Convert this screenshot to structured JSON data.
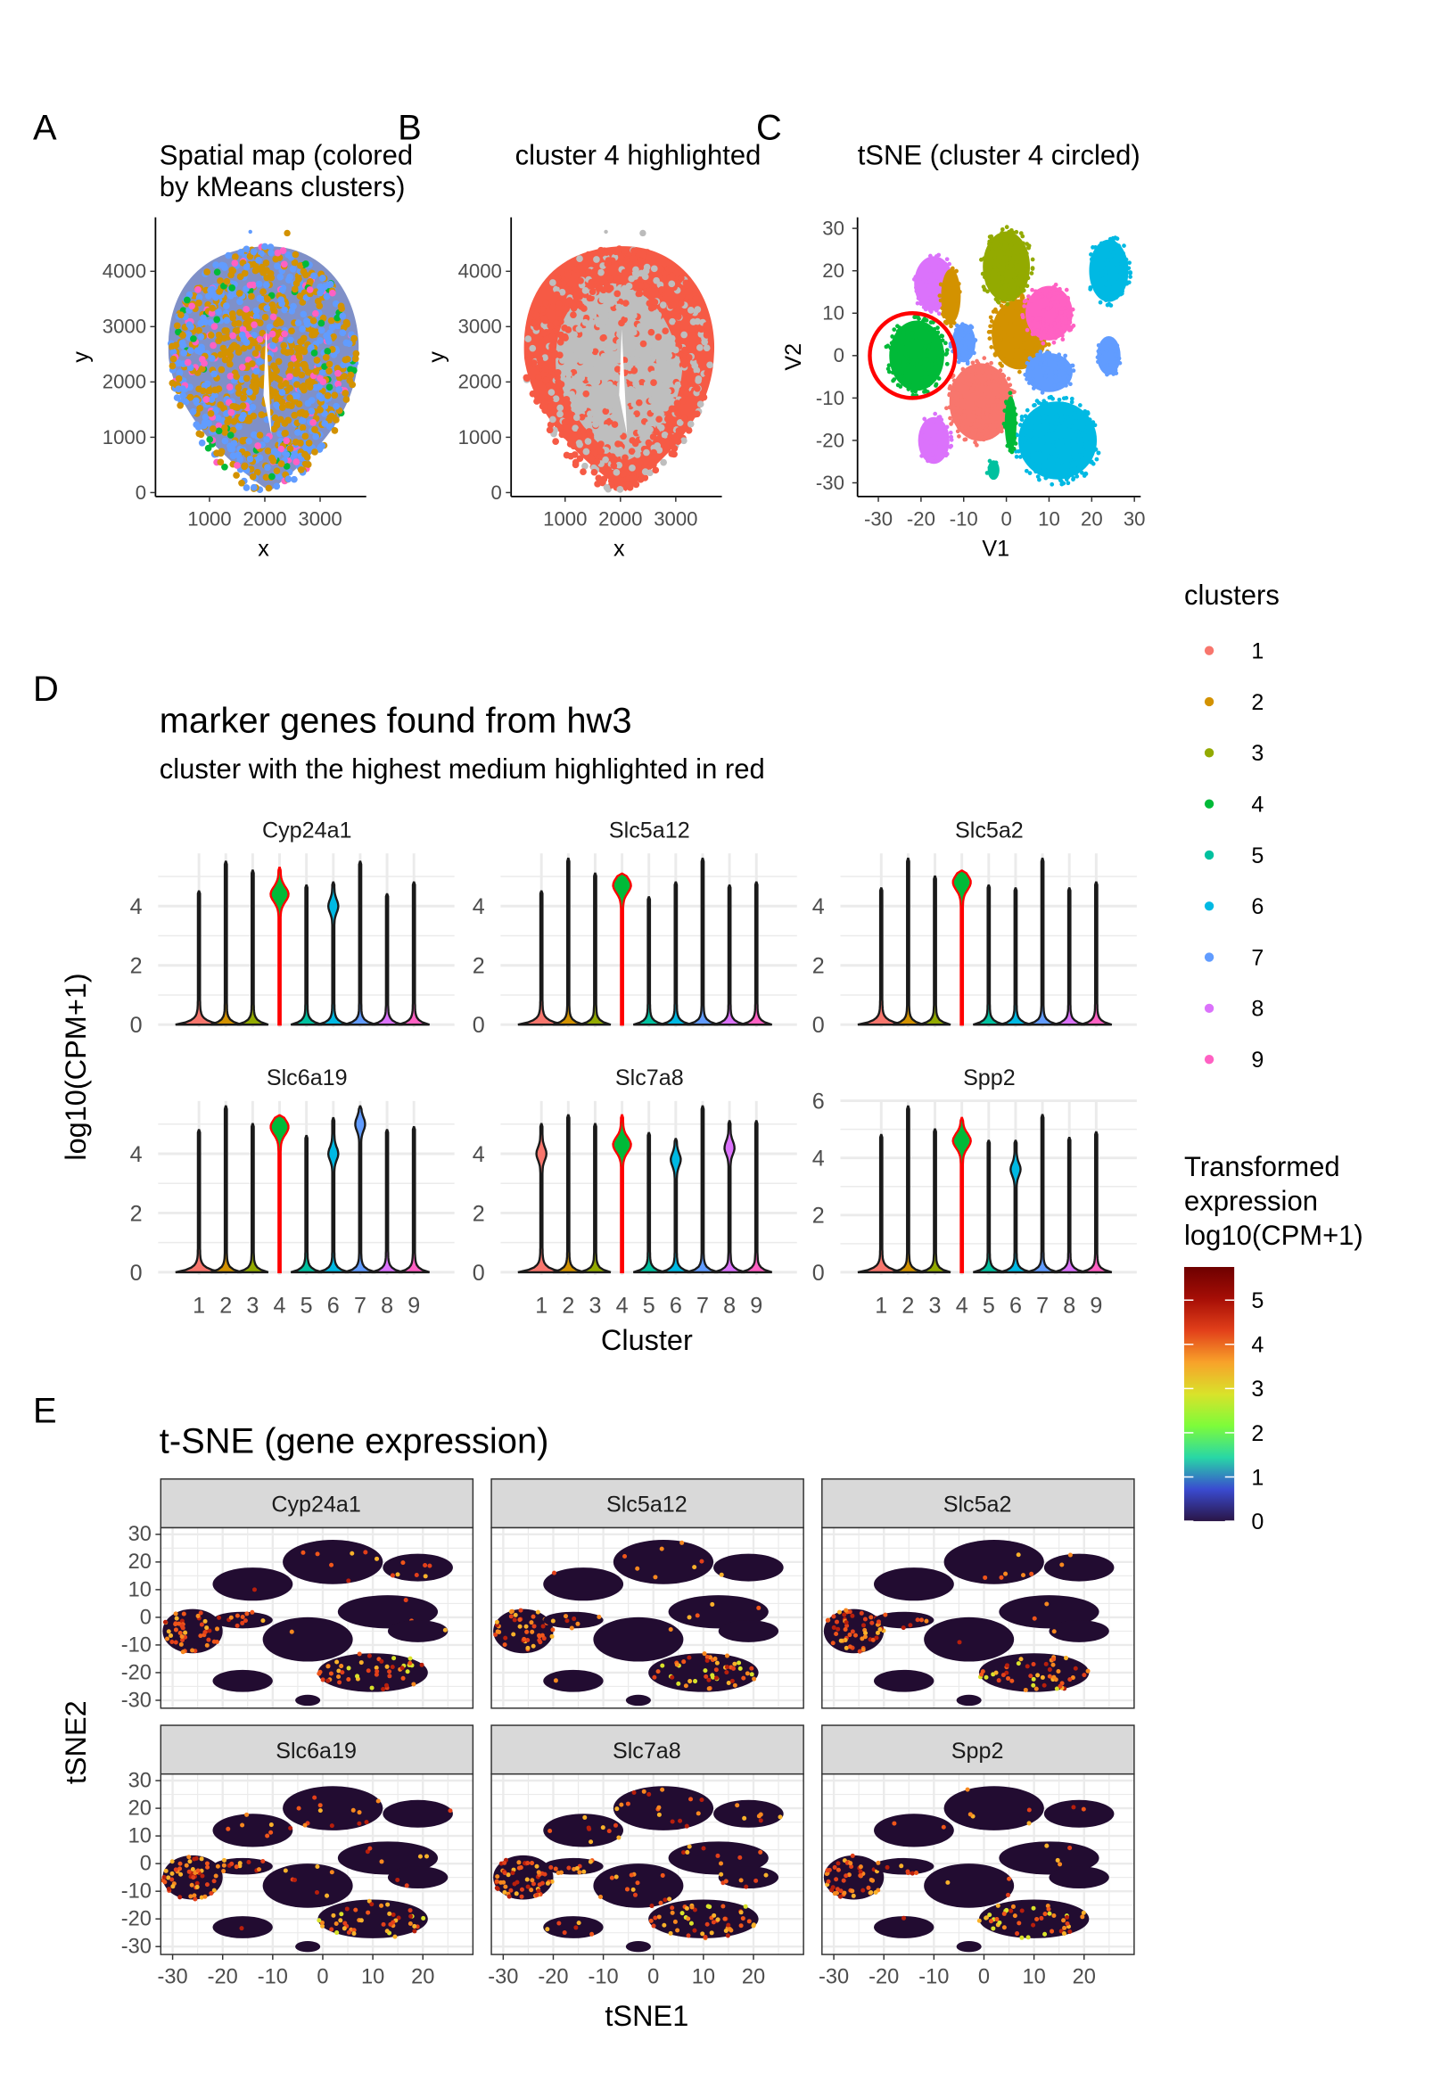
{
  "panels": {
    "A": "A",
    "B": "B",
    "C": "C",
    "D": "D",
    "E": "E"
  },
  "legend_clusters": {
    "title": "clusters",
    "items": [
      "1",
      "2",
      "3",
      "4",
      "5",
      "6",
      "7",
      "8",
      "9"
    ]
  },
  "legend_expression": {
    "title_lines": [
      "Transformed",
      "expression",
      "log10(CPM+1)"
    ],
    "ticks": [
      "0",
      "1",
      "2",
      "3",
      "4",
      "5"
    ],
    "range": [
      0,
      5.6
    ],
    "palette": [
      "#2a1546",
      "#3a4bd0",
      "#28d7a6",
      "#7dfc3a",
      "#d9e22a",
      "#f8a22a",
      "#e2401a",
      "#a60e06",
      "#6e0000"
    ]
  },
  "colors": {
    "clusters": [
      "#F8766D",
      "#D39200",
      "#93AA00",
      "#00BA38",
      "#00C19F",
      "#00B9E3",
      "#619CFF",
      "#DB72FB",
      "#FF61C3"
    ],
    "highlight": "#F65A45",
    "background_cells": "#BEBEBE",
    "circle": "#FF0000",
    "low_expression": "#220C31"
  },
  "chart_data": [
    {
      "id": "A",
      "type": "scatter",
      "title_lines": [
        "Spatial map (colored",
        "by kMeans clusters)"
      ],
      "xlabel": "x",
      "ylabel": "y",
      "xticks": [
        "1000",
        "2000",
        "3000"
      ],
      "yticks": [
        "0",
        "1000",
        "2000",
        "3000",
        "4000"
      ],
      "xlim": [
        100,
        3850
      ],
      "ylim": [
        0,
        4900
      ],
      "color_by": "clusters",
      "grid": false
    },
    {
      "id": "B",
      "type": "scatter",
      "title": "cluster 4 highlighted",
      "xlabel": "x",
      "ylabel": "y",
      "xticks": [
        "1000",
        "2000",
        "3000"
      ],
      "yticks": [
        "0",
        "1000",
        "2000",
        "3000",
        "4000"
      ],
      "xlim": [
        100,
        3850
      ],
      "ylim": [
        0,
        4900
      ],
      "highlighted_cluster": "4",
      "grid": false
    },
    {
      "id": "C",
      "type": "scatter",
      "title": "tSNE (cluster 4 circled)",
      "xlabel": "V1",
      "ylabel": "V2",
      "xticks": [
        "-30",
        "-20",
        "-10",
        "0",
        "10",
        "20",
        "30"
      ],
      "yticks": [
        "-30",
        "-20",
        "-10",
        "0",
        "10",
        "20",
        "30"
      ],
      "xlim": [
        -35,
        30
      ],
      "ylim": [
        -33,
        31
      ],
      "circled_cluster": "4",
      "circle_center": [
        -22,
        0
      ],
      "circle_radius": 10,
      "cluster_regions": [
        {
          "cluster": "4",
          "center": [
            -21,
            0
          ],
          "spread": [
            7,
            9
          ]
        },
        {
          "cluster": "8",
          "center": [
            -17,
            17
          ],
          "spread": [
            5,
            7
          ]
        },
        {
          "cluster": "8",
          "center": [
            -17,
            -20
          ],
          "spread": [
            4,
            6
          ]
        },
        {
          "cluster": "2",
          "center": [
            -13,
            14
          ],
          "spread": [
            2.5,
            7
          ]
        },
        {
          "cluster": "2",
          "center": [
            3,
            5
          ],
          "spread": [
            7,
            9
          ]
        },
        {
          "cluster": "3",
          "center": [
            0,
            21
          ],
          "spread": [
            6,
            9
          ]
        },
        {
          "cluster": "6",
          "center": [
            24,
            20
          ],
          "spread": [
            5,
            8
          ]
        },
        {
          "cluster": "6",
          "center": [
            12,
            -20
          ],
          "spread": [
            10,
            10
          ]
        },
        {
          "cluster": "9",
          "center": [
            10,
            10
          ],
          "spread": [
            6,
            7
          ]
        },
        {
          "cluster": "7",
          "center": [
            -10,
            3
          ],
          "spread": [
            3,
            5
          ]
        },
        {
          "cluster": "7",
          "center": [
            10,
            -4
          ],
          "spread": [
            6,
            5
          ]
        },
        {
          "cluster": "7",
          "center": [
            24,
            0
          ],
          "spread": [
            3,
            5
          ]
        },
        {
          "cluster": "1",
          "center": [
            -6,
            -11
          ],
          "spread": [
            8,
            10
          ]
        },
        {
          "cluster": "5",
          "center": [
            -3,
            -27
          ],
          "spread": [
            1.5,
            2.5
          ]
        },
        {
          "cluster": "4",
          "center": [
            1,
            -16
          ],
          "spread": [
            1.5,
            7
          ]
        }
      ],
      "grid": false
    },
    {
      "id": "D",
      "type": "violin",
      "title": "marker genes found from hw3",
      "subtitle": "cluster with the highest medium highlighted in red",
      "xlabel": "Cluster",
      "ylabel": "log10(CPM+1)",
      "categories": [
        "1",
        "2",
        "3",
        "4",
        "5",
        "6",
        "7",
        "8",
        "9"
      ],
      "highlighted_cluster": "4",
      "facets": [
        {
          "gene": "Cyp24a1",
          "yticks": [
            "0",
            "2",
            "4"
          ],
          "ylim": [
            0,
            5.8
          ],
          "max": [
            4.5,
            5.5,
            5.2,
            5.3,
            4.7,
            4.8,
            5.5,
            4.4,
            4.8
          ],
          "body": [
            null,
            null,
            null,
            4.4,
            null,
            4.0,
            null,
            null,
            null
          ]
        },
        {
          "gene": "Slc5a12",
          "yticks": [
            "0",
            "2",
            "4"
          ],
          "ylim": [
            0,
            5.8
          ],
          "max": [
            4.5,
            5.6,
            5.1,
            5.1,
            4.3,
            4.8,
            5.6,
            4.7,
            4.8
          ],
          "body": [
            null,
            null,
            null,
            4.7,
            null,
            null,
            null,
            null,
            null
          ]
        },
        {
          "gene": "Slc5a2",
          "yticks": [
            "0",
            "2",
            "4"
          ],
          "ylim": [
            0,
            5.8
          ],
          "max": [
            4.6,
            5.6,
            5.0,
            5.2,
            4.7,
            4.6,
            5.6,
            4.6,
            4.8
          ],
          "body": [
            null,
            null,
            null,
            4.8,
            null,
            null,
            null,
            null,
            null
          ]
        },
        {
          "gene": "Slc6a19",
          "yticks": [
            "0",
            "2",
            "4"
          ],
          "ylim": [
            0,
            5.8
          ],
          "max": [
            4.8,
            5.6,
            5.0,
            5.3,
            4.6,
            5.2,
            5.6,
            4.8,
            4.9
          ],
          "body": [
            null,
            null,
            null,
            4.9,
            null,
            4.0,
            5.0,
            null,
            null
          ]
        },
        {
          "gene": "Slc7a8",
          "yticks": [
            "0",
            "2",
            "4"
          ],
          "ylim": [
            0,
            5.8
          ],
          "max": [
            5.0,
            5.3,
            5.0,
            5.3,
            4.7,
            4.5,
            5.6,
            5.1,
            5.1
          ],
          "body": [
            4.0,
            null,
            null,
            4.3,
            null,
            3.8,
            null,
            4.2,
            null
          ]
        },
        {
          "gene": "Spp2",
          "yticks": [
            "0",
            "2",
            "4",
            "6"
          ],
          "ylim": [
            0,
            6.4
          ],
          "max": [
            4.8,
            5.8,
            5.0,
            5.4,
            4.6,
            4.6,
            5.5,
            4.7,
            4.9
          ],
          "body": [
            null,
            null,
            null,
            4.6,
            null,
            3.6,
            null,
            null,
            null
          ]
        }
      ],
      "grid": true
    },
    {
      "id": "E",
      "type": "scatter",
      "title": "t-SNE (gene expression)",
      "xlabel": "tSNE1",
      "ylabel": "tSNE2",
      "xticks": [
        "-30",
        "-20",
        "-10",
        "0",
        "10",
        "20"
      ],
      "yticks": [
        "-30",
        "-20",
        "-10",
        "0",
        "10",
        "20",
        "30"
      ],
      "xlim": [
        -33,
        28
      ],
      "ylim": [
        -33,
        32
      ],
      "facets": [
        "Cyp24a1",
        "Slc5a12",
        "Slc5a2",
        "Slc6a19",
        "Slc7a8",
        "Spp2"
      ],
      "color_by": "log10(CPM+1)",
      "grid": true
    }
  ]
}
